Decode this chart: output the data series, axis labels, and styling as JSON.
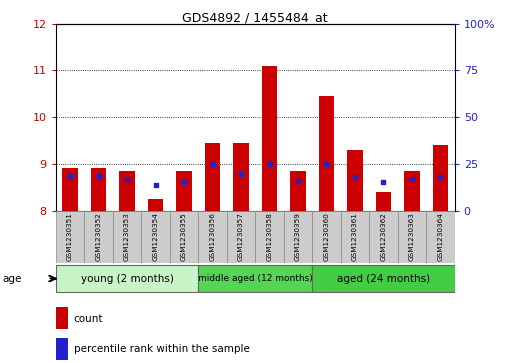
{
  "title": "GDS4892 / 1455484_at",
  "samples": [
    "GSM1230351",
    "GSM1230352",
    "GSM1230353",
    "GSM1230354",
    "GSM1230355",
    "GSM1230356",
    "GSM1230357",
    "GSM1230358",
    "GSM1230359",
    "GSM1230360",
    "GSM1230361",
    "GSM1230362",
    "GSM1230363",
    "GSM1230364"
  ],
  "red_values": [
    8.9,
    8.9,
    8.85,
    8.25,
    8.85,
    9.45,
    9.45,
    11.1,
    8.85,
    10.45,
    9.3,
    8.4,
    8.85,
    9.4
  ],
  "blue_values": [
    8.73,
    8.73,
    8.68,
    8.55,
    8.62,
    9.0,
    8.78,
    9.0,
    8.63,
    9.0,
    8.72,
    8.6,
    8.68,
    8.72
  ],
  "ylim_left": [
    8,
    12
  ],
  "ylim_right": [
    0,
    100
  ],
  "yticks_left": [
    8,
    9,
    10,
    11,
    12
  ],
  "yticks_right": [
    0,
    25,
    50,
    75,
    100
  ],
  "ytick_right_labels": [
    "0",
    "25",
    "50",
    "75",
    "100%"
  ],
  "group_labels": [
    "young (2 months)",
    "middle aged (12 months)",
    "aged (24 months)"
  ],
  "group_ranges": [
    [
      0,
      4
    ],
    [
      5,
      8
    ],
    [
      9,
      13
    ]
  ],
  "group_colors": [
    "#c8f5c8",
    "#55d455",
    "#44cc44"
  ],
  "bar_width": 0.55,
  "base_value": 8.0,
  "red_color": "#cc0000",
  "blue_color": "#2222cc",
  "grid_color": "#000000",
  "tick_bg": "#cccccc",
  "legend_red": "count",
  "legend_blue": "percentile rank within the sample",
  "age_label": "age"
}
